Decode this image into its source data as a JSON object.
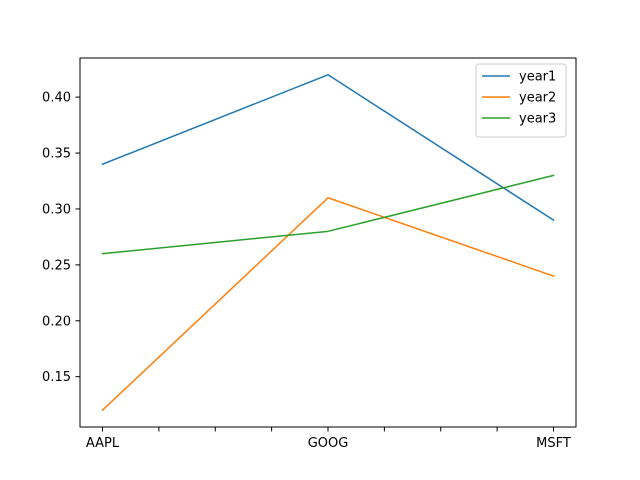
{
  "chart_data": {
    "type": "line",
    "categories": [
      "AAPL",
      "GOOG",
      "MSFT"
    ],
    "series": [
      {
        "name": "year1",
        "values": [
          0.34,
          0.42,
          0.29
        ],
        "color": "#1f77b4"
      },
      {
        "name": "year2",
        "values": [
          0.12,
          0.31,
          0.24
        ],
        "color": "#ff7f0e"
      },
      {
        "name": "year3",
        "values": [
          0.26,
          0.28,
          0.33
        ],
        "color": "#2ca02c"
      }
    ],
    "yticks": [
      "0.15",
      "0.20",
      "0.25",
      "0.30",
      "0.35",
      "0.40"
    ],
    "ylim": [
      0.105,
      0.435
    ],
    "x_minor_ticks": [
      0.25,
      0.5,
      0.75,
      1.25,
      1.5,
      1.75
    ],
    "title": "",
    "xlabel": "",
    "ylabel": "",
    "grid": false,
    "legend": "upper right"
  }
}
